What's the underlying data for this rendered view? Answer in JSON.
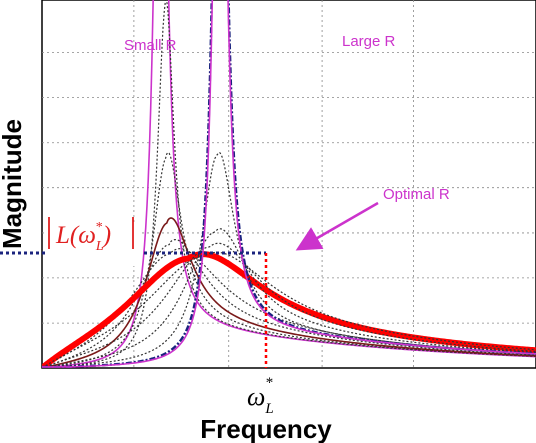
{
  "chart_data": {
    "type": "line",
    "title": "",
    "xlabel": "Frequency",
    "ylabel": "Magnitude",
    "x_tick_label": "ω_L*",
    "y_level_label": "|L(ω_L*)|",
    "annotations": {
      "small_r": "Small R",
      "large_r": "Large R",
      "optimal_r": "Optimal R"
    },
    "grid": true,
    "legend": "none",
    "xlim": [
      0,
      1
    ],
    "ylim": [
      0,
      1
    ],
    "series": [
      {
        "color": "#cc33cc",
        "style": "solid",
        "x0": 0.24,
        "g": 0.014,
        "peak": 2.2
      },
      {
        "color": "#333333",
        "style": "dotted",
        "x0": 0.25,
        "g": 0.02,
        "peak": 1.0
      },
      {
        "color": "#333333",
        "style": "dotted",
        "x0": 0.252,
        "g": 0.035,
        "peak": 0.58
      },
      {
        "color": "#7a1a1a",
        "style": "solid",
        "x0": 0.254,
        "g": 0.055,
        "peak": 0.4
      },
      {
        "color": "#333333",
        "style": "dotted",
        "x0": 0.258,
        "g": 0.08,
        "peak": 0.34
      },
      {
        "color": "#333333",
        "style": "dotted",
        "x0": 0.262,
        "g": 0.11,
        "peak": 0.315
      },
      {
        "color": "#ff0000",
        "style": "thick",
        "x0": 0.3,
        "g": 0.16,
        "peak": 0.3
      },
      {
        "color": "#333333",
        "style": "dotted",
        "x0": 0.33,
        "g": 0.15,
        "peak": 0.305
      },
      {
        "color": "#333333",
        "style": "dotted",
        "x0": 0.34,
        "g": 0.11,
        "peak": 0.33
      },
      {
        "color": "#333333",
        "style": "dotted",
        "x0": 0.35,
        "g": 0.075,
        "peak": 0.37
      },
      {
        "color": "#333333",
        "style": "dotted",
        "x0": 0.355,
        "g": 0.04,
        "peak": 0.58
      },
      {
        "color": "#1a237e",
        "style": "dashdot",
        "x0": 0.36,
        "g": 0.015,
        "peak": 2.2
      },
      {
        "color": "#cc33cc",
        "style": "solid",
        "x0": 0.36,
        "g": 0.014,
        "peak": 2.2
      }
    ],
    "optimal_point": {
      "x": 0.305,
      "y": 0.3
    }
  }
}
